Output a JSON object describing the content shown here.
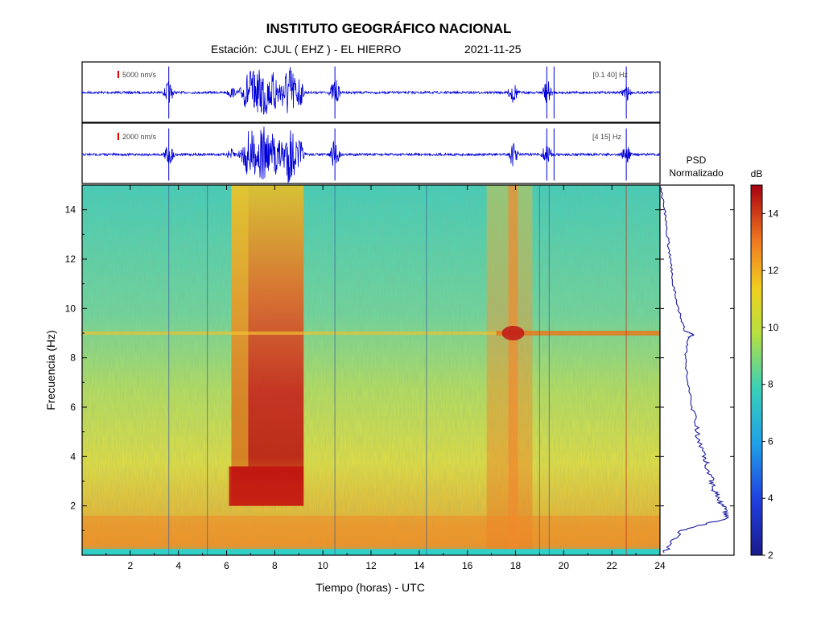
{
  "header": {
    "title": "INSTITUTO GEOGRÁFICO NACIONAL",
    "station": "Estación:  CJUL ( EHZ ) - EL HIERRO",
    "date": "2021-11-25"
  },
  "chart_data": [
    {
      "type": "line",
      "name": "seismogram-0.1-40Hz",
      "scale_label": "5000 nm/s",
      "filter_label": "[0.1 40] Hz",
      "xlim": [
        0,
        24
      ],
      "description_of_energy": [
        {
          "t": 6.2,
          "amp": 0.2
        },
        {
          "t": 7.0,
          "amp": 0.85
        },
        {
          "t": 7.5,
          "amp": 1.0
        },
        {
          "t": 8.0,
          "amp": 0.75
        },
        {
          "t": 8.6,
          "amp": 1.0
        },
        {
          "t": 9.0,
          "amp": 0.6
        },
        {
          "t": 17.9,
          "amp": 0.4
        },
        {
          "t": 3.6,
          "amp": 0.4
        },
        {
          "t": 10.5,
          "amp": 0.5
        },
        {
          "t": 19.3,
          "amp": 0.45
        },
        {
          "t": 22.6,
          "amp": 0.3
        }
      ]
    },
    {
      "type": "line",
      "name": "seismogram-4-15Hz",
      "scale_label": "2000 nm/s",
      "filter_label": "[4 15] Hz",
      "xlim": [
        0,
        24
      ]
    },
    {
      "type": "heatmap",
      "name": "spectrogram",
      "xlabel": "Tiempo (horas) - UTC",
      "ylabel": "Frecuencia  (Hz)",
      "xlim": [
        0,
        24
      ],
      "ylim": [
        0,
        15
      ],
      "x_ticks": [
        2,
        4,
        6,
        8,
        10,
        12,
        14,
        16,
        18,
        20,
        22,
        24
      ],
      "y_ticks": [
        2,
        4,
        6,
        8,
        10,
        12,
        14
      ],
      "colorbar": {
        "label": "dB",
        "range": [
          2,
          15
        ],
        "ticks": [
          2,
          4,
          6,
          8,
          10,
          12,
          14
        ]
      },
      "events": [
        {
          "t_start": 6.2,
          "t_end": 9.2,
          "f_min": 2,
          "f_max": 15,
          "level_db": 13
        },
        {
          "t_start": 17.7,
          "t_end": 18.1,
          "f_min": 0,
          "f_max": 15,
          "level_db": 11
        }
      ],
      "persistent_line_hz": 9
    },
    {
      "type": "line",
      "name": "psd",
      "title": "PSD\nNormalizado",
      "ylim": [
        0,
        15
      ],
      "points": [
        [
          0.05,
          0.1
        ],
        [
          0.3,
          1.0
        ],
        [
          0.9,
          1.5
        ],
        [
          0.85,
          2.0
        ],
        [
          0.75,
          2.5
        ],
        [
          0.7,
          3.0
        ],
        [
          0.65,
          3.5
        ],
        [
          0.6,
          4.0
        ],
        [
          0.5,
          5.0
        ],
        [
          0.43,
          6.0
        ],
        [
          0.38,
          7.0
        ],
        [
          0.34,
          8.0
        ],
        [
          0.38,
          8.8
        ],
        [
          0.45,
          8.95
        ],
        [
          0.33,
          9.1
        ],
        [
          0.25,
          10.0
        ],
        [
          0.18,
          11.0
        ],
        [
          0.14,
          12.0
        ],
        [
          0.1,
          13.0
        ],
        [
          0.06,
          14.0
        ],
        [
          0.0,
          15.0
        ]
      ]
    }
  ]
}
